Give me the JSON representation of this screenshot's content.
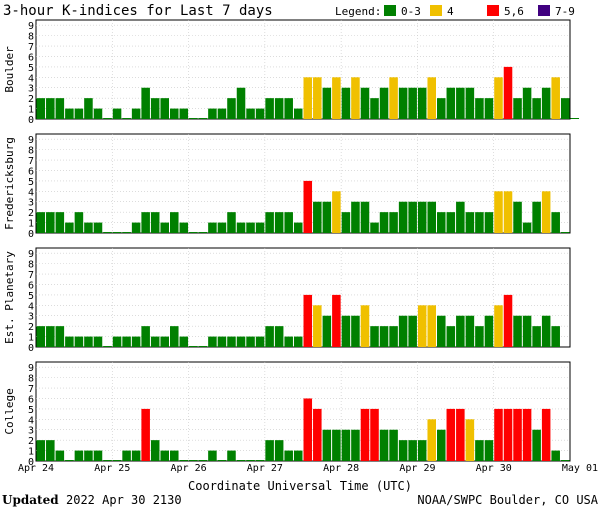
{
  "chart_data": {
    "type": "bar",
    "title": "3-hour K-indices for Last 7 days",
    "legend": {
      "label": "Legend:",
      "placement": "top-right",
      "entries": [
        {
          "label": "0-3",
          "color": "#008000"
        },
        {
          "label": "4",
          "color": "#f0c000"
        },
        {
          "label": "5,6",
          "color": "#ff0000"
        },
        {
          "label": "7-9",
          "color": "#400080"
        }
      ]
    },
    "xlabel": "Coordinate Universal Time (UTC)",
    "x_ticks": [
      "Apr 24",
      "Apr 25",
      "Apr 26",
      "Apr 27",
      "Apr 28",
      "Apr 29",
      "Apr 30",
      "May 01"
    ],
    "ylim": [
      0,
      9
    ],
    "y_ticks": [
      "0",
      "1",
      "2",
      "3",
      "4",
      "5",
      "6",
      "7",
      "8",
      "9"
    ],
    "grid": "horizontal",
    "panels": [
      {
        "station": "Boulder",
        "values": [
          2,
          2,
          2,
          1,
          1,
          2,
          1,
          0,
          1,
          0,
          1,
          3,
          2,
          2,
          1,
          1,
          0,
          0,
          1,
          1,
          2,
          3,
          1,
          1,
          2,
          2,
          2,
          1,
          4,
          4,
          3,
          4,
          3,
          4,
          3,
          2,
          3,
          4,
          3,
          3,
          3,
          4,
          2,
          3,
          3,
          3,
          2,
          2,
          4,
          5,
          2,
          3,
          2,
          3,
          4,
          2,
          0
        ]
      },
      {
        "station": "Fredericksburg",
        "values": [
          2,
          2,
          2,
          1,
          2,
          1,
          1,
          0,
          0,
          0,
          1,
          2,
          2,
          1,
          2,
          1,
          0,
          0,
          1,
          1,
          2,
          1,
          1,
          1,
          2,
          2,
          2,
          1,
          5,
          3,
          3,
          4,
          2,
          3,
          3,
          1,
          2,
          2,
          3,
          3,
          3,
          3,
          2,
          2,
          3,
          2,
          2,
          2,
          4,
          4,
          3,
          1,
          3,
          4,
          2,
          0
        ]
      },
      {
        "station": "Est. Planetary",
        "values": [
          2,
          2,
          2,
          1,
          1,
          1,
          1,
          0,
          1,
          1,
          1,
          2,
          1,
          1,
          2,
          1,
          0,
          0,
          1,
          1,
          1,
          1,
          1,
          1,
          2,
          2,
          1,
          1,
          5,
          4,
          3,
          5,
          3,
          3,
          4,
          2,
          2,
          2,
          3,
          3,
          4,
          4,
          3,
          2,
          3,
          3,
          2,
          3,
          4,
          5,
          3,
          3,
          2,
          3,
          2
        ]
      },
      {
        "station": "College",
        "values": [
          2,
          2,
          1,
          0,
          1,
          1,
          1,
          0,
          0,
          1,
          1,
          5,
          2,
          1,
          1,
          0,
          0,
          0,
          1,
          0,
          1,
          0,
          0,
          0,
          2,
          2,
          1,
          1,
          6,
          5,
          3,
          3,
          3,
          3,
          5,
          5,
          3,
          3,
          2,
          2,
          2,
          4,
          3,
          5,
          5,
          4,
          2,
          2,
          5,
          5,
          5,
          5,
          3,
          5,
          1,
          0
        ]
      }
    ]
  },
  "footer": {
    "updated_label": "Updated",
    "updated_value": "2022 Apr 30 2130",
    "source": "NOAA/SWPC Boulder, CO USA"
  }
}
